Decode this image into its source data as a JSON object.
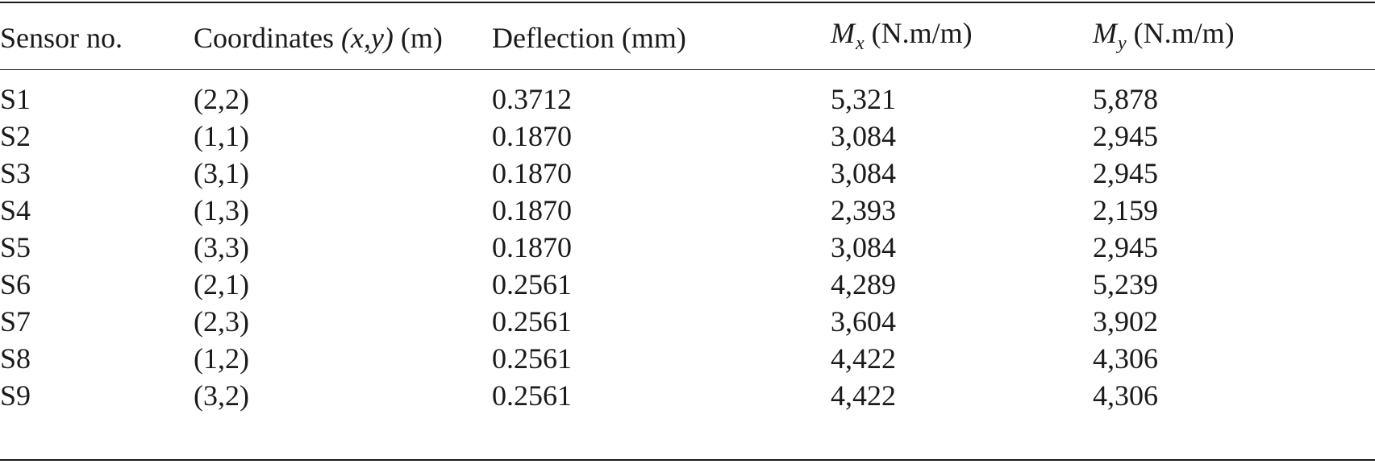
{
  "table": {
    "headers": {
      "sensor": "Sensor no.",
      "coord_prefix": "Coordinates ",
      "coord_var": "(x,y)",
      "coord_unit": " (m)",
      "deflection": "Deflection (mm)",
      "mx_symbol": "M",
      "mx_sub": "x",
      "mx_unit": " (N.m/m)",
      "my_symbol": "M",
      "my_sub": "y",
      "my_unit": " (N.m/m)"
    },
    "rows": [
      {
        "sensor": "S1",
        "coord": "(2,2)",
        "deflection": "0.3712",
        "mx": "5,321",
        "my": "5,878"
      },
      {
        "sensor": "S2",
        "coord": "(1,1)",
        "deflection": "0.1870",
        "mx": "3,084",
        "my": "2,945"
      },
      {
        "sensor": "S3",
        "coord": "(3,1)",
        "deflection": "0.1870",
        "mx": "3,084",
        "my": "2,945"
      },
      {
        "sensor": "S4",
        "coord": "(1,3)",
        "deflection": "0.1870",
        "mx": "2,393",
        "my": "2,159"
      },
      {
        "sensor": "S5",
        "coord": "(3,3)",
        "deflection": "0.1870",
        "mx": "3,084",
        "my": "2,945"
      },
      {
        "sensor": "S6",
        "coord": "(2,1)",
        "deflection": "0.2561",
        "mx": "4,289",
        "my": "5,239"
      },
      {
        "sensor": "S7",
        "coord": "(2,3)",
        "deflection": "0.2561",
        "mx": "3,604",
        "my": "3,902"
      },
      {
        "sensor": "S8",
        "coord": "(1,2)",
        "deflection": "0.2561",
        "mx": "4,422",
        "my": "4,306"
      },
      {
        "sensor": "S9",
        "coord": "(3,2)",
        "deflection": "0.2561",
        "mx": "4,422",
        "my": "4,306"
      }
    ]
  }
}
